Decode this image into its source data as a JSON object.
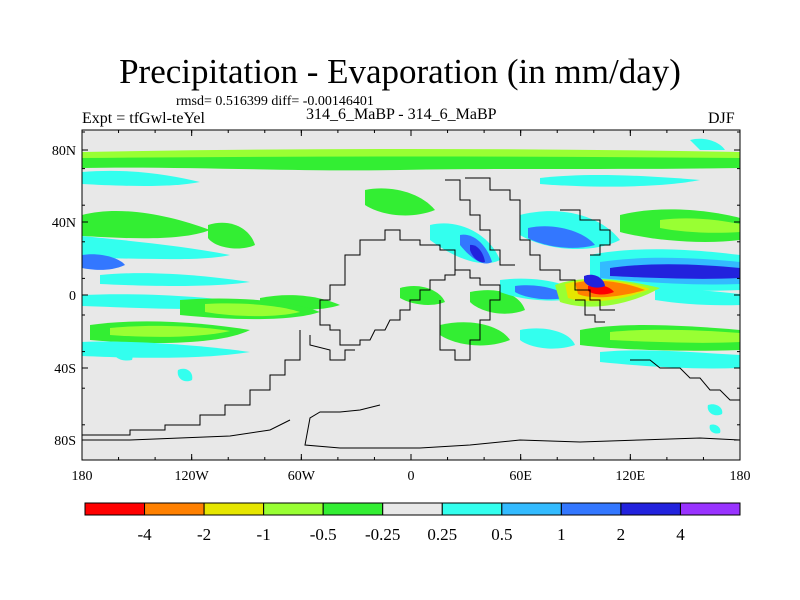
{
  "chart_data": {
    "type": "heatmap",
    "title": "Precipitation - Evaporation (in mm/day)",
    "stats": "rmsd= 0.516399 diff= -0.00146401",
    "experiment": "Expt = tfGwl-teYel",
    "comparison": "314_6_MaBP - 314_6_MaBP",
    "season": "DJF",
    "y_ticks": [
      "80N",
      "40N",
      "0",
      "40S",
      "80S"
    ],
    "x_ticks": [
      "180",
      "120W",
      "60W",
      "0",
      "60E",
      "120E",
      "180"
    ],
    "xlim": [
      -180,
      180
    ],
    "ylim": [
      -90,
      90
    ],
    "colorbar": {
      "labels": [
        "-4",
        "-2",
        "-1",
        "-0.5",
        "-0.25",
        "0.25",
        "0.5",
        "1",
        "2",
        "4"
      ],
      "colors": [
        "#ff0000",
        "#ff8000",
        "#e6e600",
        "#99ff33",
        "#33ee33",
        "#e8e8e8",
        "#33ffee",
        "#33bbff",
        "#3377ff",
        "#2222dd",
        "#9933ff"
      ]
    }
  }
}
